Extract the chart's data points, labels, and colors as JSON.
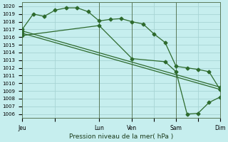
{
  "bg_color": "#c6eeee",
  "grid_color": "#a8d4d4",
  "line_color": "#2d6a2d",
  "xlabel": "Pression niveau de la mer( hPa )",
  "ylim": [
    1005.5,
    1020.5
  ],
  "yticks": [
    1006,
    1007,
    1008,
    1009,
    1010,
    1011,
    1012,
    1013,
    1014,
    1015,
    1016,
    1017,
    1018,
    1019,
    1020
  ],
  "xtick_labels": [
    "Jeu",
    "",
    "Lun",
    "Ven",
    "",
    "Sam",
    "",
    "Dim"
  ],
  "xtick_positions": [
    0,
    3,
    7,
    10,
    12,
    14,
    16,
    18
  ],
  "line1_x": [
    0,
    1,
    2,
    3,
    4,
    5,
    6,
    7,
    8,
    9,
    10,
    11,
    12,
    13,
    14,
    15,
    16,
    17,
    18
  ],
  "line1_y": [
    1017.0,
    1019.0,
    1018.7,
    1019.5,
    1019.8,
    1019.8,
    1019.3,
    1018.1,
    1018.3,
    1018.4,
    1018.0,
    1017.7,
    1016.4,
    1015.3,
    1012.2,
    1012.0,
    1011.8,
    1011.5,
    1009.2
  ],
  "line2_x": [
    0,
    18
  ],
  "line2_y": [
    1016.5,
    1009.2
  ],
  "line3_x": [
    0,
    7,
    10,
    13,
    14,
    15,
    16,
    17,
    18
  ],
  "line3_y": [
    1016.2,
    1017.5,
    1013.2,
    1012.8,
    1011.5,
    1006.0,
    1006.1,
    1007.5,
    1008.2
  ],
  "line4_x": [
    0,
    18
  ],
  "line4_y": [
    1016.8,
    1009.5
  ],
  "vline_positions": [
    0,
    7,
    10,
    14,
    18
  ],
  "total_x": 18,
  "ytick_fontsize": 5.0,
  "xtick_fontsize": 5.5,
  "xlabel_fontsize": 6.5
}
